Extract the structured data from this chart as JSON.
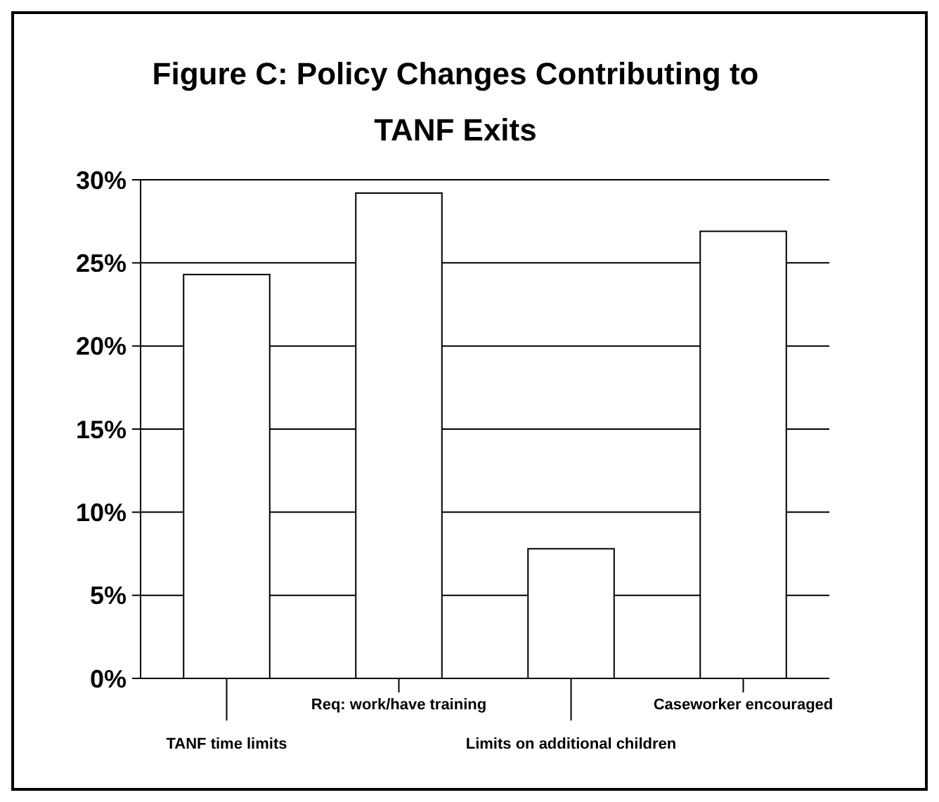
{
  "chart_data": {
    "type": "bar",
    "title": "Figure C: Policy Changes Contributing to TANF Exits",
    "categories": [
      "TANF time limits",
      "Req: work/have training",
      "Limits on additional children",
      "Caseworker encouraged"
    ],
    "values": [
      24.3,
      29.2,
      7.8,
      26.9
    ],
    "color": "#ffffff",
    "ylim": [
      0,
      30
    ],
    "yticks": [
      {
        "value": 0,
        "label": "0%"
      },
      {
        "value": 5,
        "label": "5%"
      },
      {
        "value": 10,
        "label": "10%"
      },
      {
        "value": 15,
        "label": "15%"
      },
      {
        "value": 20,
        "label": "20%"
      },
      {
        "value": 25,
        "label": "25%"
      },
      {
        "value": 30,
        "label": "30%"
      }
    ],
    "grid": "y"
  }
}
